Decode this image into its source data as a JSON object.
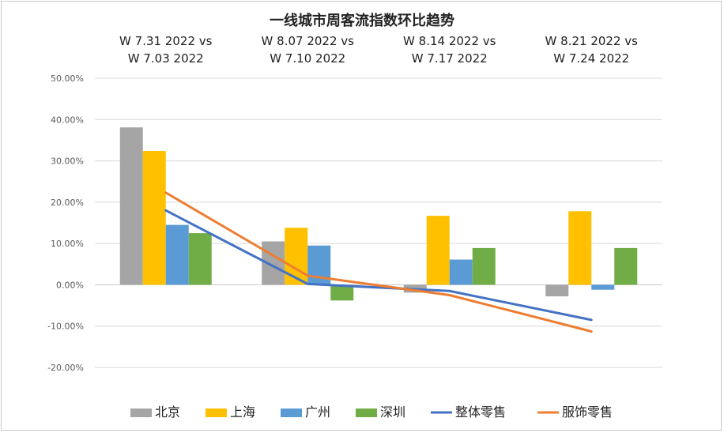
{
  "chart_data": {
    "type": "bar",
    "title": "一线城市周客流指数环比趋势",
    "categories": [
      [
        "W 7.31 2022  vs",
        "W 7.03 2022"
      ],
      [
        "W 8.07 2022  vs",
        "W 7.10 2022"
      ],
      [
        "W 8.14 2022  vs",
        "W 7.17 2022"
      ],
      [
        "W 8.21 2022  vs",
        "W 7.24 2022"
      ]
    ],
    "xlabel": "",
    "ylabel": "",
    "ylim": [
      -0.2,
      0.5
    ],
    "yticks": [
      0.5,
      0.4,
      0.3,
      0.2,
      0.1,
      0.0,
      -0.1,
      -0.2
    ],
    "ytick_labels": [
      "50.00%",
      "40.00%",
      "30.00%",
      "20.00%",
      "10.00%",
      "0.00%",
      "-10.00%",
      "-20.00%"
    ],
    "grid": true,
    "legend_position": "bottom",
    "bar_series": [
      {
        "name": "北京",
        "color": "#a5a5a5",
        "values": [
          0.381,
          0.105,
          -0.019,
          -0.028
        ]
      },
      {
        "name": "上海",
        "color": "#ffc000",
        "values": [
          0.324,
          0.138,
          0.167,
          0.178
        ]
      },
      {
        "name": "广州",
        "color": "#5b9bd5",
        "values": [
          0.145,
          0.095,
          0.061,
          -0.012
        ]
      },
      {
        "name": "深圳",
        "color": "#70ad47",
        "values": [
          0.125,
          -0.038,
          0.089,
          0.089
        ]
      }
    ],
    "line_series": [
      {
        "name": "整体零售",
        "color": "#4472c4",
        "values": [
          0.18,
          0.002,
          -0.015,
          -0.085
        ]
      },
      {
        "name": "服饰零售",
        "color": "#ed7d31",
        "values": [
          0.223,
          0.022,
          -0.025,
          -0.113
        ]
      }
    ]
  }
}
